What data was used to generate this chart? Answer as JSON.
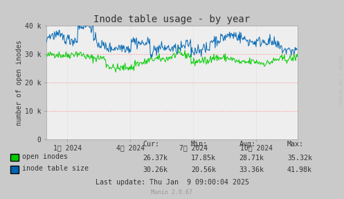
{
  "title": "Inode table usage - by year",
  "ylabel": "number of open inodes",
  "background_color": "#CACACA",
  "plot_bg_color": "#EEEEEE",
  "ylim": [
    0,
    40000
  ],
  "yticks": [
    0,
    10000,
    20000,
    30000,
    40000
  ],
  "ytick_labels": [
    "0",
    "10 k",
    "20 k",
    "30 k",
    "40 k"
  ],
  "xtick_labels": [
    "1月 2024",
    "4月 2024",
    "7月 2024",
    "10月 2024"
  ],
  "green_color": "#00CC00",
  "blue_color": "#0066B3",
  "legend": [
    {
      "label": "open inodes",
      "cur": "26.37k",
      "min": "17.85k",
      "avg": "28.71k",
      "max": "35.32k"
    },
    {
      "label": "inode table size",
      "cur": "30.26k",
      "min": "20.56k",
      "avg": "33.36k",
      "max": "41.98k"
    }
  ],
  "footer": "Last update: Thu Jan  9 09:00:04 2025",
  "munin_version": "Munin 2.0.67",
  "n_points": 400,
  "green_base": 28500,
  "blue_base": 33500
}
